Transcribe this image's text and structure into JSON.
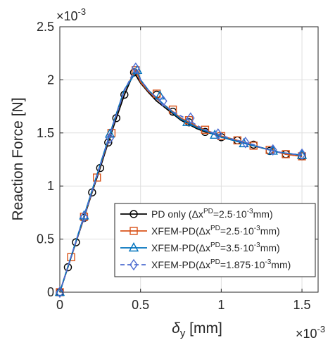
{
  "chart_data": {
    "type": "line",
    "xlabel": "δ",
    "xlabel_sub": "y",
    "xlabel_unit": " [mm]",
    "ylabel": "Reaction Force [N]",
    "x_multiplier": {
      "base": "×10",
      "exp": "-3"
    },
    "y_multiplier": {
      "base": "×10",
      "exp": "-3"
    },
    "xlim": [
      0,
      1.6
    ],
    "ylim": [
      0,
      2.5
    ],
    "xticks": [
      0,
      0.5,
      1,
      1.5
    ],
    "xtick_labels": [
      "0",
      "0.5",
      "1",
      "1.5"
    ],
    "yticks": [
      0,
      0.5,
      1,
      1.5,
      2,
      2.5
    ],
    "ytick_labels": [
      "0",
      "0.5",
      "1",
      "1.5",
      "2",
      "2.5"
    ],
    "grid": true,
    "legend_position": "bottom-right",
    "series": [
      {
        "name": "PD only",
        "legend_parts": {
          "pre": "PD only  (Δx",
          "sup": "PD",
          "post": "=2.5·10",
          "sup2": "-3",
          "end": "mm)"
        },
        "color": "#000000",
        "marker": "circle",
        "dashed": false,
        "x": [
          0,
          0.05,
          0.1,
          0.15,
          0.2,
          0.25,
          0.3,
          0.35,
          0.4,
          0.46,
          0.5,
          0.55,
          0.6,
          0.65,
          0.7,
          0.75,
          0.8,
          0.85,
          0.9,
          0.95,
          1.0,
          1.05,
          1.1,
          1.15,
          1.2,
          1.25,
          1.3,
          1.35,
          1.4,
          1.45,
          1.5
        ],
        "y": [
          0,
          0.235,
          0.47,
          0.7,
          0.94,
          1.17,
          1.41,
          1.64,
          1.86,
          2.07,
          1.97,
          1.88,
          1.8,
          1.74,
          1.68,
          1.62,
          1.58,
          1.54,
          1.51,
          1.49,
          1.46,
          1.44,
          1.42,
          1.4,
          1.38,
          1.36,
          1.34,
          1.32,
          1.3,
          1.29,
          1.28
        ],
        "marker_x": [
          0,
          0.05,
          0.1,
          0.15,
          0.2,
          0.25,
          0.3,
          0.35,
          0.4,
          0.46,
          0.6,
          0.7,
          0.8,
          0.9,
          1.0,
          1.1,
          1.2,
          1.3,
          1.4,
          1.5
        ],
        "marker_y": [
          0,
          0.235,
          0.47,
          0.7,
          0.94,
          1.17,
          1.41,
          1.64,
          1.86,
          2.07,
          1.86,
          1.7,
          1.6,
          1.51,
          1.46,
          1.43,
          1.39,
          1.33,
          1.3,
          1.28
        ]
      },
      {
        "name": "XFEM-PD",
        "legend_parts": {
          "pre": "XFEM-PD(Δx",
          "sup": "PD",
          "post": "=2.5·10",
          "sup2": "-3",
          "end": "mm)"
        },
        "color": "#D95319",
        "marker": "square",
        "dashed": false,
        "x": [
          0,
          0.05,
          0.1,
          0.15,
          0.2,
          0.25,
          0.3,
          0.35,
          0.4,
          0.47,
          0.5,
          0.55,
          0.6,
          0.65,
          0.7,
          0.75,
          0.8,
          0.85,
          0.9,
          0.95,
          1.0,
          1.05,
          1.1,
          1.15,
          1.2,
          1.25,
          1.3,
          1.35,
          1.4,
          1.45,
          1.5
        ],
        "y": [
          0,
          0.24,
          0.475,
          0.71,
          0.95,
          1.19,
          1.43,
          1.67,
          1.9,
          2.09,
          1.98,
          1.89,
          1.82,
          1.76,
          1.7,
          1.64,
          1.6,
          1.56,
          1.53,
          1.5,
          1.47,
          1.45,
          1.43,
          1.41,
          1.38,
          1.36,
          1.34,
          1.32,
          1.3,
          1.29,
          1.28
        ],
        "marker_x": [
          0,
          0.07,
          0.15,
          0.23,
          0.32,
          0.47,
          0.6,
          0.7,
          0.8,
          0.9,
          1.0,
          1.1,
          1.2,
          1.3,
          1.4,
          1.5
        ],
        "marker_y": [
          0,
          0.33,
          0.71,
          1.08,
          1.5,
          2.09,
          1.87,
          1.72,
          1.62,
          1.53,
          1.47,
          1.43,
          1.38,
          1.34,
          1.3,
          1.28
        ]
      },
      {
        "name": "XFEM-PD",
        "legend_parts": {
          "pre": "XFEM-PD(Δx",
          "sup": "PD",
          "post": "=3.5·10",
          "sup2": "-3",
          "end": "mm)"
        },
        "color": "#0072BD",
        "marker": "triangle",
        "dashed": false,
        "x": [
          0,
          0.05,
          0.1,
          0.15,
          0.2,
          0.25,
          0.3,
          0.35,
          0.4,
          0.48,
          0.5,
          0.55,
          0.6,
          0.65,
          0.7,
          0.75,
          0.8,
          0.85,
          0.9,
          0.95,
          1.0,
          1.05,
          1.1,
          1.15,
          1.2,
          1.25,
          1.3,
          1.35,
          1.4,
          1.45,
          1.5
        ],
        "y": [
          0,
          0.24,
          0.48,
          0.72,
          0.96,
          1.2,
          1.44,
          1.68,
          1.91,
          2.09,
          2.0,
          1.9,
          1.83,
          1.76,
          1.69,
          1.63,
          1.59,
          1.55,
          1.52,
          1.49,
          1.46,
          1.44,
          1.42,
          1.4,
          1.38,
          1.36,
          1.34,
          1.32,
          1.31,
          1.3,
          1.29
        ],
        "marker_x": [
          0,
          0.15,
          0.31,
          0.48,
          0.62,
          0.79,
          0.96,
          1.14,
          1.32,
          1.5
        ],
        "marker_y": [
          0,
          0.72,
          1.49,
          2.09,
          1.85,
          1.6,
          1.48,
          1.4,
          1.33,
          1.29
        ]
      },
      {
        "name": "XFEM-PD",
        "legend_parts": {
          "pre": "XFEM-PD(Δx",
          "sup": "PD",
          "post": "=1.875·10",
          "sup2": "-3",
          "end": "mm)"
        },
        "color": "#4F6DD1",
        "marker": "diamond",
        "dashed": true,
        "x": [
          0,
          0.05,
          0.1,
          0.15,
          0.2,
          0.25,
          0.3,
          0.35,
          0.4,
          0.47,
          0.5,
          0.55,
          0.6,
          0.65,
          0.7,
          0.75,
          0.8,
          0.85,
          0.9,
          0.95,
          1.0,
          1.05,
          1.1,
          1.15,
          1.2,
          1.25,
          1.3,
          1.35,
          1.4,
          1.45,
          1.5
        ],
        "y": [
          0,
          0.24,
          0.475,
          0.71,
          0.95,
          1.19,
          1.43,
          1.67,
          1.9,
          2.11,
          2.0,
          1.9,
          1.83,
          1.76,
          1.7,
          1.66,
          1.62,
          1.57,
          1.53,
          1.5,
          1.48,
          1.45,
          1.43,
          1.41,
          1.39,
          1.36,
          1.34,
          1.32,
          1.31,
          1.3,
          1.3
        ],
        "marker_x": [
          0,
          0.15,
          0.31,
          0.47,
          0.64,
          0.81,
          0.98,
          1.15,
          1.32,
          1.5
        ],
        "marker_y": [
          0,
          0.71,
          1.45,
          2.11,
          1.8,
          1.64,
          1.49,
          1.41,
          1.34,
          1.3
        ]
      }
    ]
  }
}
